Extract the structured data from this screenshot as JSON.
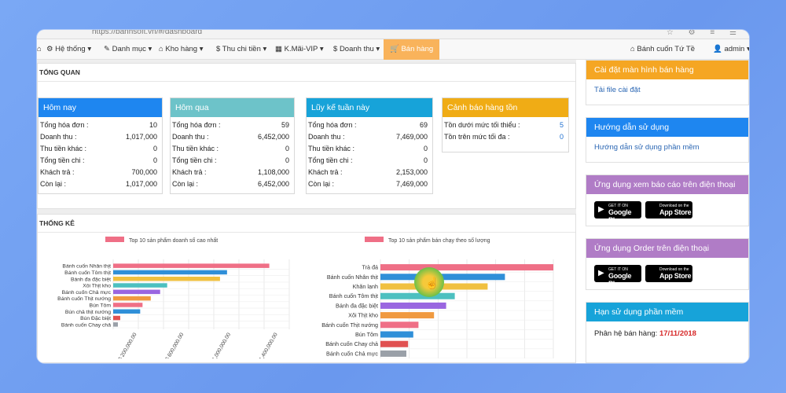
{
  "browser": {
    "url": "https://banhsoft.vn/#/dashboard"
  },
  "nav": {
    "items": [
      "Hệ thống ▾",
      "Danh mục ▾",
      "Kho hàng ▾",
      "Thu chi tiền ▾",
      "K.Mãi-VIP ▾",
      "Doanh thu ▾",
      "Bán hàng"
    ],
    "icons": [
      "gear-icon",
      "tag-icon",
      "home-icon",
      "dollar-icon",
      "grid-icon",
      "dollar-icon",
      "cart-icon"
    ],
    "right_store": "Bánh cuốn Tứ Tề",
    "right_user": "admin ▾"
  },
  "overview": {
    "title": "TỔNG QUAN",
    "cards": [
      {
        "title": "Hôm nay",
        "color": "#1e86f0",
        "rows": [
          [
            "Tổng hóa đơn :",
            "10"
          ],
          [
            "Doanh thu :",
            "1,017,000"
          ],
          [
            "Thu tiền khác :",
            "0"
          ],
          [
            "Tổng tiền chi :",
            "0"
          ],
          [
            "Khách trả :",
            "700,000"
          ],
          [
            "Còn lại :",
            "1,017,000"
          ]
        ]
      },
      {
        "title": "Hôm qua",
        "color": "#6dc3c9",
        "rows": [
          [
            "Tổng hóa đơn :",
            "59"
          ],
          [
            "Doanh thu :",
            "6,452,000"
          ],
          [
            "Thu tiền khác :",
            "0"
          ],
          [
            "Tổng tiền chi :",
            "0"
          ],
          [
            "Khách trả :",
            "1,108,000"
          ],
          [
            "Còn lại :",
            "6,452,000"
          ]
        ]
      },
      {
        "title": "Lũy kế tuần này",
        "color": "#17a3d9",
        "rows": [
          [
            "Tổng hóa đơn :",
            "69"
          ],
          [
            "Doanh thu :",
            "7,469,000"
          ],
          [
            "Thu tiền khác :",
            "0"
          ],
          [
            "Tổng tiền chi :",
            "0"
          ],
          [
            "Khách trả :",
            "2,153,000"
          ],
          [
            "Còn lại :",
            "7,469,000"
          ]
        ]
      },
      {
        "title": "Cảnh báo hàng tồn",
        "color": "#f0ac15",
        "rows": [
          [
            "Tồn dưới mức tối thiểu :",
            "5"
          ],
          [
            "Tồn trên mức tối đa :",
            "0"
          ]
        ]
      }
    ]
  },
  "stats": {
    "title": "THỐNG KÊ"
  },
  "chart_data": [
    {
      "type": "bar",
      "orientation": "horizontal",
      "title": "Top 10 sản phẩm doanh số cao nhất",
      "categories": [
        "Bánh cuốn Nhân thịt",
        "Bánh cuốn Tôm thịt",
        "Bánh đa đặc biệt",
        "Xôi Thịt kho",
        "Bánh cuốn Chả mực",
        "Bánh cuốn Thịt nướng",
        "Bún Tôm",
        "Bún chả thịt nướng",
        "Bún Đặc biệt",
        "Bánh cuốn Chay chả"
      ],
      "values": [
        1330000,
        970000,
        910000,
        460000,
        400000,
        320000,
        250000,
        230000,
        60000,
        40000
      ],
      "colors": [
        "#ef6f86",
        "#2f8fd8",
        "#f0c040",
        "#4cc0c0",
        "#9a66e0",
        "#f09a40",
        "#ef6f86",
        "#2f8fd8",
        "#e05050",
        "#9aa0a8"
      ],
      "xticks": [
        "$ 200,000.00",
        "$ 600,000.00",
        "$ 1,000,000.00",
        "$ 1,400,000.00"
      ],
      "xtick_values": [
        200000,
        600000,
        1000000,
        1400000
      ],
      "legend": "top"
    },
    {
      "type": "bar",
      "orientation": "horizontal",
      "title": "Top 10 sản phẩm bán chạy theo số lượng",
      "categories": [
        "Trà đá",
        "Bánh cuốn Nhân thịt",
        "Khăn lạnh",
        "Bánh cuốn Tôm thịt",
        "Bánh đa đặc biệt",
        "Xôi Thịt kho",
        "Bánh cuốn Thịt nướng",
        "Bún Tôm",
        "Bánh cuốn Chay chả",
        "Bánh cuốn Chả mực"
      ],
      "values": [
        100,
        72,
        62,
        43,
        38,
        31,
        22,
        19,
        16,
        15
      ],
      "colors": [
        "#ef6f86",
        "#2f8fd8",
        "#f0c040",
        "#4cc0c0",
        "#9a66e0",
        "#f09a40",
        "#ef6f86",
        "#2f8fd8",
        "#e05050",
        "#9aa0a8"
      ],
      "legend": "top"
    }
  ],
  "sidebar": {
    "boxes": [
      {
        "title": "Cài đặt màn hình bán hàng",
        "color": "#f5a623",
        "link": "Tải file cài đặt"
      },
      {
        "title": "Hướng dẫn sử dụng",
        "color": "#1e86f0",
        "link": "Hướng dẫn sử dụng phần mềm"
      },
      {
        "title": "Ứng dụng xem báo cáo trên điện thoại",
        "color": "#b07cc6"
      },
      {
        "title": "Ứng dụng Order trên điện thoại",
        "color": "#b07cc6"
      },
      {
        "title": "Hạn sử dụng phần mềm",
        "color": "#17a3d9"
      }
    ],
    "store_badges": {
      "google": {
        "small": "GET IT ON",
        "big": "Google Play"
      },
      "apple": {
        "small": "Download on the",
        "big": "App Store"
      }
    },
    "expiry_label": "Phân hệ bán hàng: ",
    "expiry_date": "17/11/2018"
  }
}
